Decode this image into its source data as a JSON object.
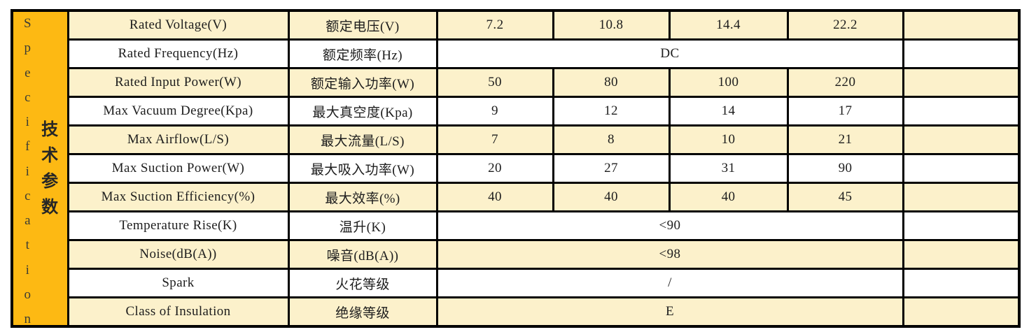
{
  "colors": {
    "accent_orange": "#fdb913",
    "row_yellow": "#fcf1cb",
    "row_white": "#ffffff",
    "border": "#000000",
    "text": "#1d1d1d"
  },
  "sidebar": {
    "en": "Specification",
    "zh": "技术参数"
  },
  "rows": [
    {
      "en": "Rated Voltage(V)",
      "zh": "额定电压(V)",
      "v1": "7.2",
      "v2": "10.8",
      "v3": "14.4",
      "v4": "22.2"
    },
    {
      "en": "Rated Frequency(Hz)",
      "zh": "额定频率(Hz)",
      "span": "DC"
    },
    {
      "en": "Rated Input Power(W)",
      "zh": "额定输入功率(W)",
      "v1": "50",
      "v2": "80",
      "v3": "100",
      "v4": "220"
    },
    {
      "en": "Max Vacuum Degree(Kpa)",
      "zh": "最大真空度(Kpa)",
      "v1": "9",
      "v2": "12",
      "v3": "14",
      "v4": "17"
    },
    {
      "en": "Max Airflow(L/S)",
      "zh": "最大流量(L/S)",
      "v1": "7",
      "v2": "8",
      "v3": "10",
      "v4": "21"
    },
    {
      "en": "Max Suction Power(W)",
      "zh": "最大吸入功率(W)",
      "v1": "20",
      "v2": "27",
      "v3": "31",
      "v4": "90"
    },
    {
      "en": "Max Suction Efficiency(%)",
      "zh": "最大效率(%)",
      "v1": "40",
      "v2": "40",
      "v3": "40",
      "v4": "45"
    },
    {
      "en": "Temperature Rise(K)",
      "zh": "温升(K)",
      "span": "<90"
    },
    {
      "en": "Noise(dB(A))",
      "zh": "噪音(dB(A))",
      "span": "<98"
    },
    {
      "en": "Spark",
      "zh": "火花等级",
      "span": "/"
    },
    {
      "en": "Class of Insulation",
      "zh": "绝缘等级",
      "span": "E"
    }
  ]
}
